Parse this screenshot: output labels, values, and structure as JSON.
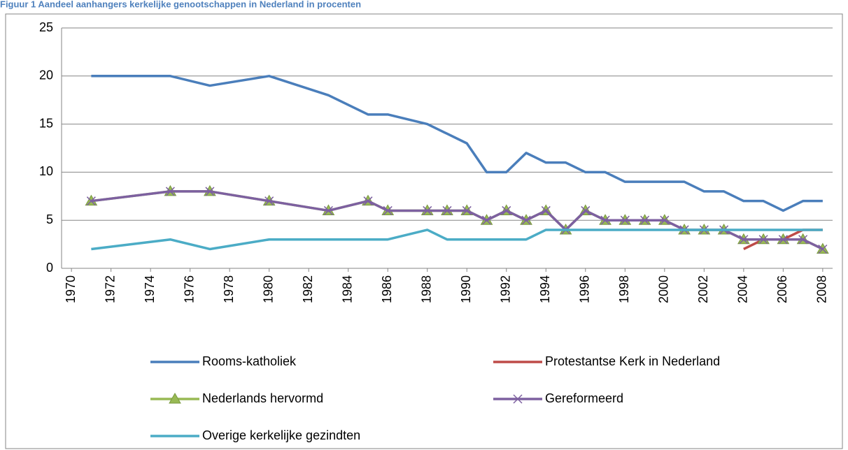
{
  "chart_data": {
    "type": "line",
    "title": "Figuur 1 Aandeel aanhangers kerkelijke genootschappen in Nederland in procenten",
    "x": [
      1971,
      1975,
      1977,
      1980,
      1983,
      1985,
      1986,
      1988,
      1989,
      1990,
      1991,
      1992,
      1993,
      1994,
      1995,
      1996,
      1997,
      1998,
      1999,
      2000,
      2001,
      2002,
      2003,
      2004,
      2005,
      2006,
      2007,
      2008
    ],
    "series": [
      {
        "name": "Rooms-katholiek",
        "color": "#4a7ebb",
        "marker": "none",
        "values": [
          20,
          20,
          19,
          20,
          18,
          16,
          16,
          15,
          14,
          13,
          10,
          10,
          12,
          11,
          11,
          10,
          10,
          9,
          9,
          9,
          9,
          8,
          8,
          7,
          7,
          6,
          7,
          7
        ]
      },
      {
        "name": "Protestantse Kerk in Nederland",
        "color": "#be4b48",
        "marker": "none",
        "values": [
          null,
          null,
          null,
          null,
          null,
          null,
          null,
          null,
          null,
          null,
          null,
          null,
          null,
          null,
          null,
          null,
          null,
          null,
          null,
          null,
          null,
          null,
          null,
          2,
          3,
          3,
          4,
          4
        ]
      },
      {
        "name": "Nederlands hervormd",
        "color": "#98b954",
        "marker": "triangle",
        "values": [
          7,
          8,
          8,
          7,
          6,
          7,
          6,
          6,
          6,
          6,
          5,
          6,
          5,
          6,
          4,
          6,
          5,
          5,
          5,
          5,
          4,
          4,
          4,
          3,
          3,
          3,
          3,
          2
        ]
      },
      {
        "name": "Gereformeerd",
        "color": "#7d60a0",
        "marker": "x",
        "values": [
          7,
          8,
          8,
          7,
          6,
          7,
          6,
          6,
          6,
          6,
          5,
          6,
          5,
          6,
          4,
          6,
          5,
          5,
          5,
          5,
          4,
          4,
          4,
          3,
          3,
          3,
          3,
          2
        ]
      },
      {
        "name": "Overige kerkelijke gezindten",
        "color": "#4bacc6",
        "marker": "none",
        "values": [
          2,
          3,
          2,
          3,
          3,
          3,
          3,
          4,
          3,
          3,
          3,
          3,
          3,
          4,
          4,
          4,
          4,
          4,
          4,
          4,
          4,
          4,
          4,
          4,
          4,
          4,
          4,
          4
        ]
      }
    ],
    "xlim": [
      1969.5,
      2008.5
    ],
    "xticks": [
      1970,
      1972,
      1974,
      1976,
      1978,
      1980,
      1982,
      1984,
      1986,
      1988,
      1990,
      1992,
      1994,
      1996,
      1998,
      2000,
      2002,
      2004,
      2006,
      2008
    ],
    "ylim": [
      0,
      25
    ],
    "yticks": [
      0,
      5,
      10,
      15,
      20,
      25
    ],
    "grid": true,
    "legend": "bottom"
  }
}
